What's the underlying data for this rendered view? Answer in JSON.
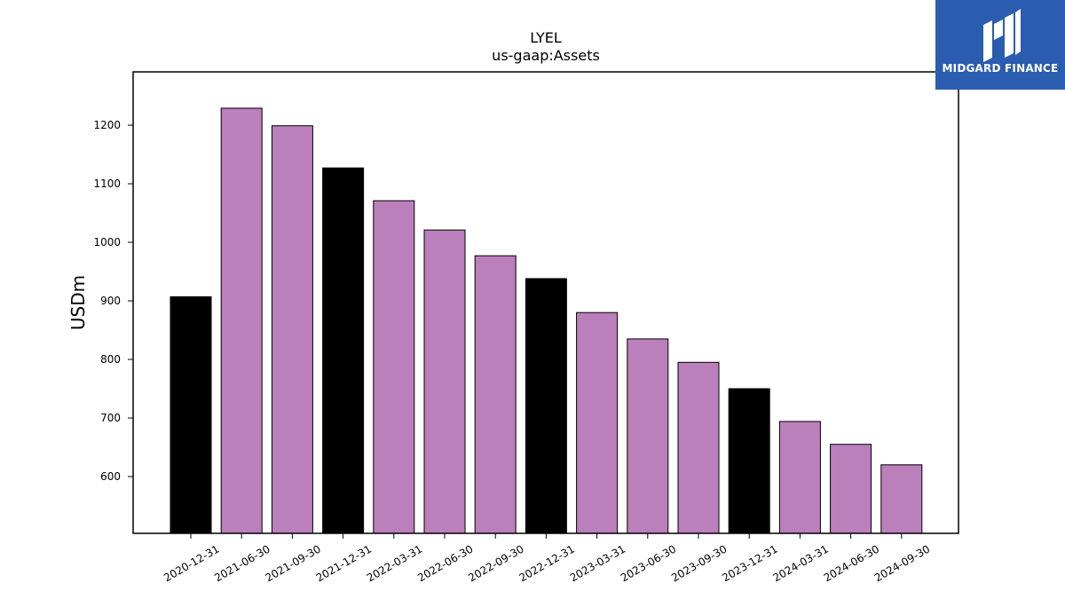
{
  "chart_data": {
    "type": "bar",
    "title": "LYEL",
    "subtitle": "us-gaap:Assets",
    "ylabel": "USDm",
    "xlabel": "",
    "categories": [
      "2020-12-31",
      "2021-06-30",
      "2021-09-30",
      "2021-12-31",
      "2022-03-31",
      "2022-06-30",
      "2022-09-30",
      "2022-12-31",
      "2023-03-31",
      "2023-06-30",
      "2023-09-30",
      "2023-12-31",
      "2024-03-31",
      "2024-06-30",
      "2024-09-30"
    ],
    "values": [
      907,
      1229,
      1199,
      1127,
      1071,
      1021,
      977,
      938,
      880,
      835,
      795,
      750,
      694,
      655,
      620
    ],
    "bar_colors": [
      "#000000",
      "#bb7fbb",
      "#bb7fbb",
      "#000000",
      "#bb7fbb",
      "#bb7fbb",
      "#bb7fbb",
      "#000000",
      "#bb7fbb",
      "#bb7fbb",
      "#bb7fbb",
      "#000000",
      "#bb7fbb",
      "#bb7fbb",
      "#bb7fbb"
    ],
    "ylim": [
      503,
      1291
    ],
    "yticks": [
      600,
      700,
      800,
      900,
      1000,
      1100,
      1200
    ],
    "grid": false,
    "legend": "none"
  },
  "logo": {
    "text": "MIDGARD FINANCE",
    "background": "#2a5db0"
  }
}
